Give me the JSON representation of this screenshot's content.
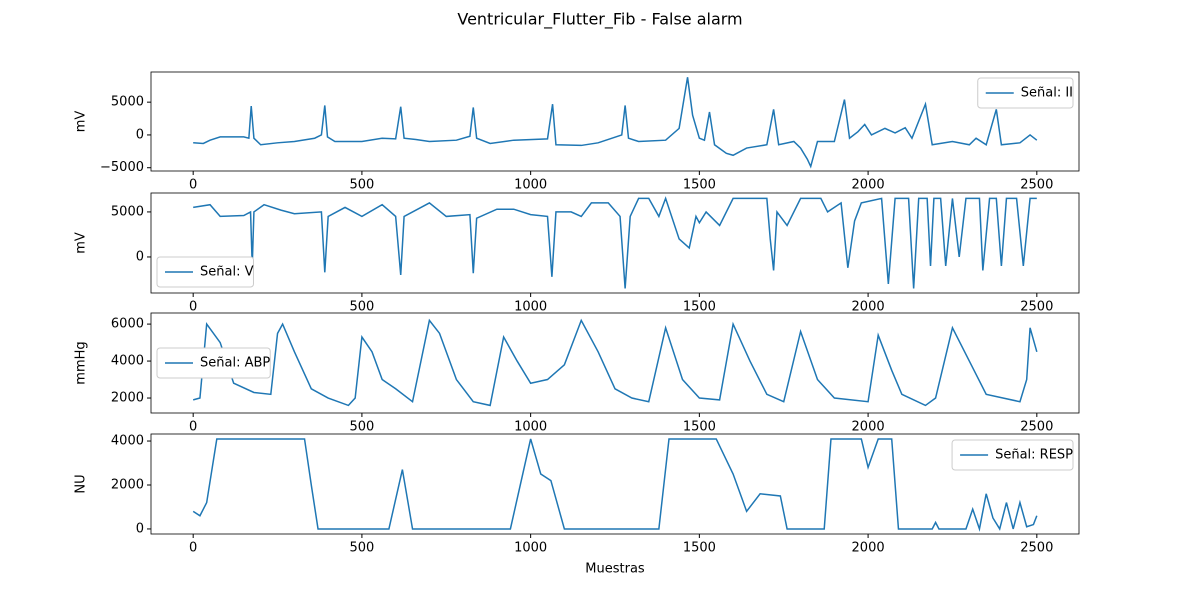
{
  "title": "Ventricular_Flutter_Fib - False alarm",
  "chart_data": [
    {
      "type": "line",
      "ylabel": "mV",
      "legend": "upper right",
      "x": [
        0,
        30,
        50,
        80,
        150,
        165,
        172,
        180,
        200,
        250,
        300,
        360,
        380,
        390,
        398,
        420,
        500,
        560,
        600,
        615,
        625,
        660,
        700,
        780,
        820,
        830,
        840,
        880,
        950,
        1050,
        1065,
        1075,
        1150,
        1200,
        1270,
        1280,
        1290,
        1320,
        1400,
        1440,
        1465,
        1480,
        1500,
        1515,
        1530,
        1545,
        1580,
        1600,
        1640,
        1700,
        1720,
        1735,
        1780,
        1800,
        1820,
        1830,
        1850,
        1900,
        1930,
        1945,
        1970,
        1990,
        2010,
        2050,
        2080,
        2110,
        2130,
        2170,
        2190,
        2250,
        2300,
        2320,
        2350,
        2380,
        2395,
        2450,
        2480,
        2500
      ],
      "series": [
        {
          "name": "Señal: II",
          "color": "#1f77b4",
          "values": [
            -1200,
            -1300,
            -800,
            -300,
            -300,
            -500,
            4400,
            -500,
            -1500,
            -1200,
            -1000,
            -500,
            0,
            4500,
            -300,
            -1000,
            -1000,
            -500,
            -600,
            4300,
            -500,
            -700,
            -1000,
            -800,
            -200,
            4200,
            -500,
            -1300,
            -800,
            -600,
            4700,
            -1500,
            -1600,
            -1200,
            0,
            4500,
            -500,
            -1000,
            -800,
            1000,
            8800,
            3000,
            -500,
            -800,
            3500,
            -1500,
            -2800,
            -3100,
            -2000,
            -1500,
            3900,
            -1500,
            -1000,
            -2000,
            -3700,
            -4800,
            -1000,
            -1000,
            5400,
            -500,
            500,
            1600,
            0,
            1000,
            300,
            1100,
            -500,
            4700,
            -1500,
            -1000,
            -1500,
            -500,
            -1500,
            3900,
            -1500,
            -1200,
            0,
            -800
          ]
        }
      ],
      "xlim": [
        -125,
        2625
      ],
      "xticks": [
        0,
        500,
        1000,
        1500,
        2000,
        2500
      ],
      "ylim": [
        -5500,
        9600
      ],
      "yticks": [
        {
          "value": -5000,
          "label": "−5000"
        },
        0,
        5000
      ]
    },
    {
      "type": "line",
      "ylabel": "mV",
      "legend": "lower left",
      "x": [
        0,
        50,
        80,
        150,
        170,
        175,
        180,
        210,
        260,
        300,
        380,
        390,
        400,
        450,
        500,
        560,
        600,
        615,
        625,
        700,
        750,
        820,
        830,
        840,
        900,
        950,
        1000,
        1050,
        1063,
        1075,
        1120,
        1150,
        1180,
        1230,
        1265,
        1280,
        1295,
        1320,
        1350,
        1380,
        1400,
        1440,
        1470,
        1490,
        1500,
        1520,
        1560,
        1600,
        1700,
        1710,
        1720,
        1730,
        1760,
        1800,
        1860,
        1880,
        1920,
        1940,
        1960,
        1980,
        2040,
        2060,
        2080,
        2120,
        2135,
        2150,
        2175,
        2185,
        2195,
        2215,
        2230,
        2250,
        2270,
        2290,
        2330,
        2340,
        2360,
        2380,
        2395,
        2410,
        2440,
        2460,
        2480,
        2500
      ],
      "series": [
        {
          "name": "Señal: V",
          "color": "#1f77b4",
          "values": [
            5500,
            5800,
            4500,
            4600,
            5000,
            -1000,
            5000,
            5800,
            5200,
            4800,
            5000,
            -1700,
            4500,
            5500,
            4500,
            5800,
            4500,
            -2000,
            4500,
            6000,
            4500,
            4700,
            -1800,
            4300,
            5300,
            5300,
            4700,
            4500,
            -2200,
            5000,
            5000,
            4500,
            6000,
            6000,
            4500,
            -3500,
            4500,
            6500,
            6500,
            4500,
            6500,
            2000,
            1000,
            4500,
            3800,
            5000,
            3500,
            6500,
            6500,
            2000,
            -1500,
            5000,
            3500,
            6500,
            6500,
            5000,
            6000,
            -1200,
            4000,
            6000,
            6500,
            -3000,
            6500,
            6500,
            -3500,
            6500,
            6500,
            -1000,
            6500,
            6500,
            -1000,
            6500,
            0,
            6500,
            6500,
            -1500,
            6500,
            6500,
            -1000,
            6500,
            6500,
            -1000,
            6500,
            6500
          ]
        }
      ],
      "xlim": [
        -125,
        2625
      ],
      "xticks": [
        0,
        500,
        1000,
        1500,
        2000,
        2500
      ],
      "ylim": [
        -4000,
        7100
      ],
      "yticks": [
        0,
        5000
      ]
    },
    {
      "type": "line",
      "ylabel": "mmHg",
      "legend": "center left",
      "x": [
        0,
        20,
        40,
        80,
        120,
        180,
        230,
        250,
        265,
        300,
        350,
        400,
        460,
        480,
        500,
        530,
        560,
        600,
        650,
        700,
        730,
        780,
        830,
        880,
        920,
        960,
        1000,
        1050,
        1100,
        1150,
        1200,
        1250,
        1300,
        1350,
        1400,
        1450,
        1500,
        1560,
        1600,
        1650,
        1700,
        1750,
        1800,
        1850,
        1900,
        2000,
        2030,
        2070,
        2100,
        2170,
        2200,
        2250,
        2300,
        2350,
        2450,
        2470,
        2480,
        2500
      ],
      "series": [
        {
          "name": "Señal: ABP",
          "color": "#1f77b4",
          "values": [
            1900,
            2000,
            6000,
            5000,
            2800,
            2300,
            2200,
            5500,
            6000,
            4500,
            2500,
            2000,
            1600,
            2000,
            5300,
            4500,
            3000,
            2500,
            1800,
            6200,
            5500,
            3000,
            1800,
            1600,
            5300,
            4000,
            2800,
            3000,
            3800,
            6200,
            4500,
            2500,
            2000,
            1800,
            5800,
            3000,
            2000,
            1900,
            6000,
            4000,
            2200,
            1800,
            5600,
            3000,
            2000,
            1800,
            5400,
            3500,
            2200,
            1600,
            2000,
            5800,
            4000,
            2200,
            1800,
            3000,
            5800,
            4500
          ]
        }
      ],
      "xlim": [
        -125,
        2625
      ],
      "xticks": [
        0,
        500,
        1000,
        1500,
        2000,
        2500
      ],
      "ylim": [
        1190,
        6600
      ],
      "yticks": [
        2000,
        4000,
        6000
      ]
    },
    {
      "type": "line",
      "ylabel": "NU",
      "xlabel": "Muestras",
      "legend": "upper right",
      "x": [
        0,
        20,
        40,
        70,
        330,
        350,
        370,
        580,
        620,
        650,
        940,
        1000,
        1030,
        1060,
        1100,
        1380,
        1410,
        1550,
        1600,
        1640,
        1680,
        1740,
        1760,
        1870,
        1890,
        1980,
        2000,
        2030,
        2070,
        2090,
        2190,
        2200,
        2210,
        2290,
        2310,
        2330,
        2350,
        2370,
        2390,
        2410,
        2430,
        2450,
        2470,
        2490,
        2500
      ],
      "series": [
        {
          "name": "Señal: RESP",
          "color": "#1f77b4",
          "values": [
            800,
            600,
            1200,
            4095,
            4095,
            2000,
            0,
            0,
            2700,
            0,
            0,
            4095,
            2500,
            2200,
            0,
            0,
            4095,
            4095,
            2500,
            800,
            1600,
            1500,
            0,
            0,
            4095,
            4095,
            2800,
            4095,
            4095,
            0,
            0,
            300,
            0,
            0,
            900,
            0,
            1600,
            500,
            0,
            1200,
            0,
            1200,
            100,
            200,
            600
          ]
        }
      ],
      "xlim": [
        -125,
        2625
      ],
      "xticks": [
        0,
        500,
        1000,
        1500,
        2000,
        2500
      ],
      "ylim": [
        -230,
        4320
      ],
      "yticks": [
        0,
        2000,
        4000
      ]
    }
  ]
}
